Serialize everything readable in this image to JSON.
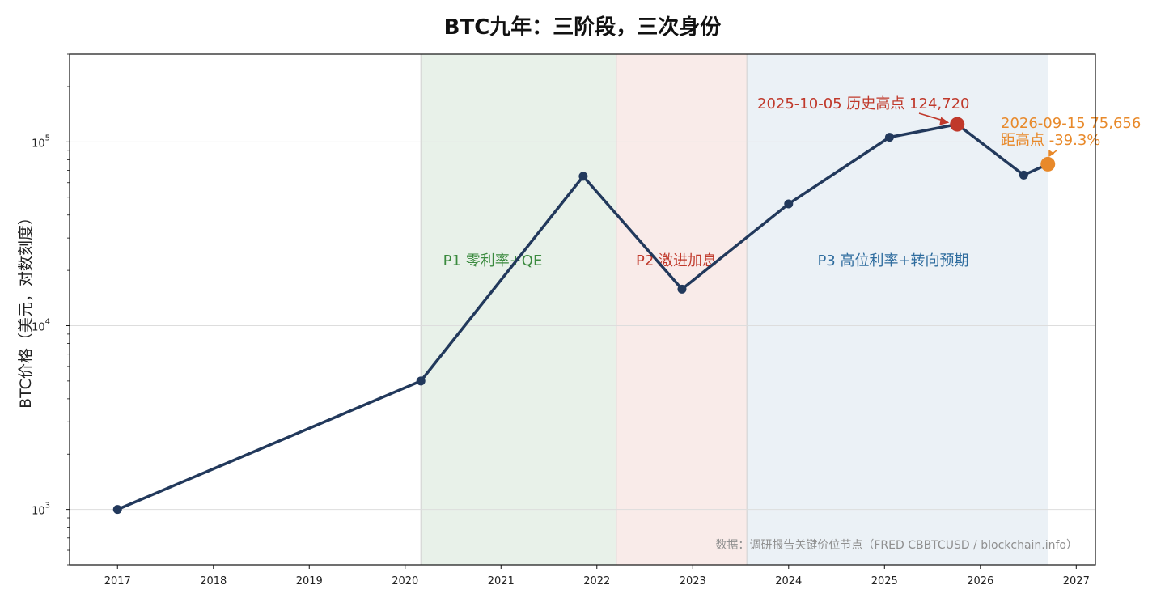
{
  "chart_data": {
    "type": "line",
    "title": "BTC九年：三阶段，三次身份",
    "ylabel": "BTC价格（美元，对数刻度）",
    "xlabel": "",
    "yscale": "log",
    "xlim": [
      2016.5,
      2027.2
    ],
    "ylim": [
      500,
      300000
    ],
    "grid": "y",
    "x_ticks": [
      "2017",
      "2018",
      "2019",
      "2020",
      "2021",
      "2022",
      "2023",
      "2024",
      "2025",
      "2026",
      "2027"
    ],
    "y_ticks": [
      {
        "value": 1000,
        "base": "10",
        "exp": "3"
      },
      {
        "value": 10000,
        "base": "10",
        "exp": "4"
      },
      {
        "value": 100000,
        "base": "10",
        "exp": "5"
      }
    ],
    "series": [
      {
        "color": "#22395c",
        "points": [
          {
            "x": "2017-01-01",
            "y": 1000
          },
          {
            "x": "2020-03-01",
            "y": 5000
          },
          {
            "x": "2021-11-10",
            "y": 65000
          },
          {
            "x": "2022-11-21",
            "y": 15800
          },
          {
            "x": "2024-01-01",
            "y": 46000
          },
          {
            "x": "2025-01-20",
            "y": 106000
          },
          {
            "x": "2025-10-05",
            "y": 124720
          },
          {
            "x": "2026-06-15",
            "y": 66000
          },
          {
            "x": "2026-09-15",
            "y": 75656
          }
        ]
      }
    ],
    "phases": [
      {
        "label": "P1 零利率+QE",
        "start": "2020-03-01",
        "end": "2022-03-16",
        "fill": "#e8f1e9",
        "text_color": "#3a8a3e"
      },
      {
        "label": "P2 激进加息",
        "start": "2022-03-16",
        "end": "2023-07-26",
        "fill": "#f9ebe9",
        "text_color": "#c0392b"
      },
      {
        "label": "P3 高位利率+转向预期",
        "start": "2023-07-26",
        "end": "2026-09-15",
        "fill": "#ebf1f6",
        "text_color": "#2e6c9e"
      }
    ],
    "annotations": [
      {
        "text": "2025-10-05 历史高点 124,720",
        "x": "2025-10-05",
        "y": 124720,
        "color": "#c0392b"
      },
      {
        "text": "2026-09-15  75,656",
        "text2": "距高点 -39.3%",
        "x": "2026-09-15",
        "y": 75656,
        "color": "#e8892a"
      }
    ],
    "source_note": "数据：调研报告关键价位节点（FRED CBBTCUSD / blockchain.info）"
  }
}
